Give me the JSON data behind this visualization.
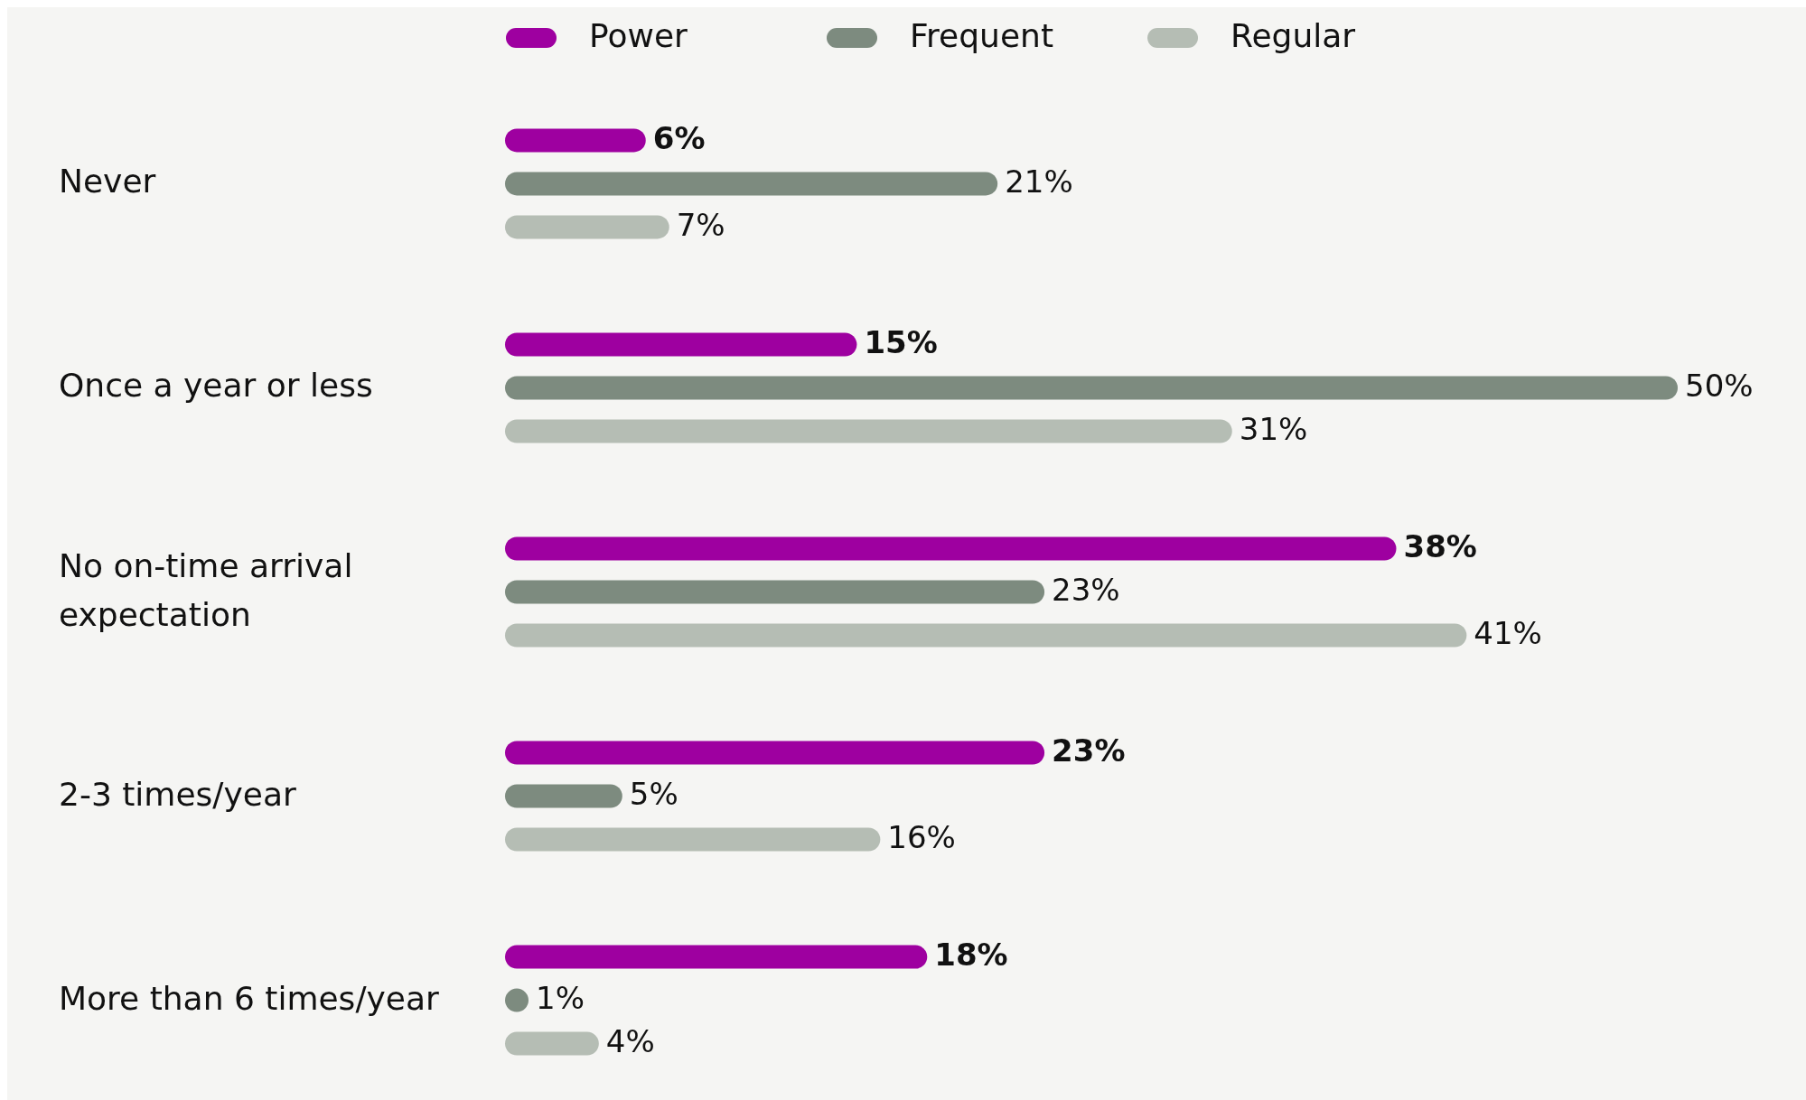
{
  "chart_data": {
    "type": "bar",
    "orientation": "horizontal",
    "categories": [
      "Never",
      "Once a year or less",
      "No on-time arrival expectation",
      "2-3 times/year",
      "More than 6 times/year"
    ],
    "series": [
      {
        "name": "Power",
        "color": "#9e00a0",
        "values": [
          6,
          15,
          38,
          23,
          18
        ],
        "value_labels": [
          "6%",
          "15%",
          "38%",
          "23%",
          "18%"
        ]
      },
      {
        "name": "Frequent",
        "color": "#7d8b7f",
        "values": [
          21,
          50,
          23,
          5,
          1
        ],
        "value_labels": [
          "21%",
          "50%",
          "23%",
          "5%",
          "1%"
        ]
      },
      {
        "name": "Regular",
        "color": "#b5bdb4",
        "values": [
          7,
          31,
          41,
          16,
          4
        ],
        "value_labels": [
          "7%",
          "31%",
          "41%",
          "16%",
          "4%"
        ]
      }
    ],
    "relative": false,
    "legend": "top"
  }
}
